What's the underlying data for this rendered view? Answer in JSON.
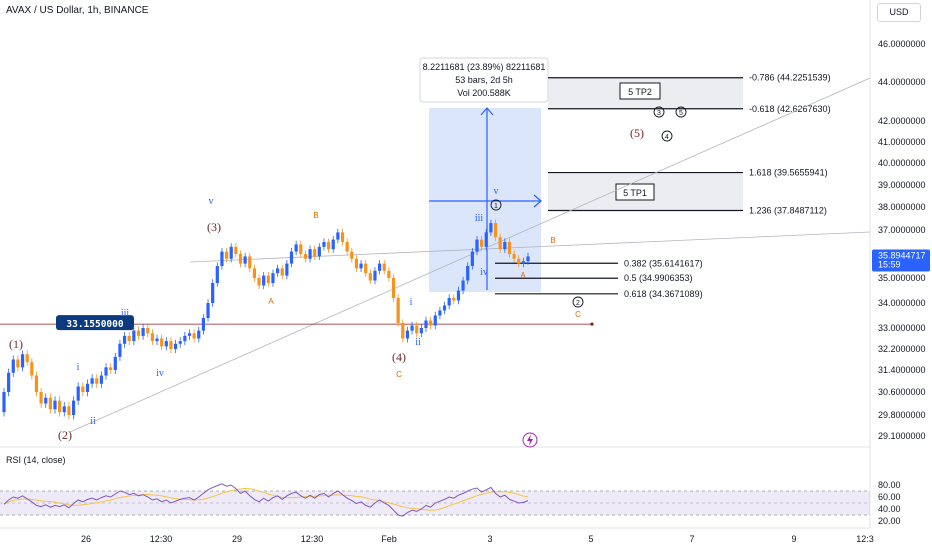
{
  "header": {
    "symbol": "AVAX / US Dollar, 1h, BINANCE",
    "currency": "USD"
  },
  "rsi": {
    "label": "RSI (14, close)"
  },
  "measure_box": {
    "line1": "8.2211681 (23.89%) 82211681",
    "line2": "53 bars, 2d 5h",
    "line3": "Vol 200.588K"
  },
  "targets": {
    "tp1": "5 TP1",
    "tp2": "5 TP2"
  },
  "horizontal_line_label": "33.1550000",
  "price_badge": {
    "price": "35.8944717",
    "time": "15:59"
  },
  "colors": {
    "up": "#2962ff",
    "down": "#f7931a",
    "fib_fill": "#e3e6eb",
    "measure_fill": "#5b8def",
    "rsi_band": "#9575cd",
    "rsi_line": "#7e57c2",
    "wave_major": "#6d2b2b",
    "wave_minor": "#2962ff",
    "wave_abc": "#e06b00"
  },
  "chart_data": {
    "type": "candlestick",
    "title": "AVAX / US Dollar, 1h, BINANCE",
    "y_ticks": [
      "46.0000000",
      "44.0000000",
      "42.0000000",
      "41.0000000",
      "40.0000000",
      "39.0000000",
      "38.0000000",
      "37.0000000",
      "36.0000000",
      "35.0000000",
      "34.0000000",
      "33.0000000",
      "32.2000000",
      "31.4000000",
      "30.6000000",
      "29.8000000",
      "29.1000000"
    ],
    "y_tick_values": [
      46.0,
      44.0,
      42.0,
      41.0,
      40.0,
      39.0,
      38.0,
      37.0,
      36.0,
      35.0,
      34.0,
      33.0,
      32.2,
      31.4,
      30.6,
      29.8,
      29.1
    ],
    "x_ticks": [
      "26",
      "12:30",
      "29",
      "12:30",
      "Feb",
      "3",
      "5",
      "7",
      "9",
      "12:3"
    ],
    "rsi_ticks": [
      "80.00",
      "60.00",
      "40.00",
      "20.00"
    ],
    "rsi_tick_values": [
      80,
      60,
      40,
      20
    ],
    "fib_levels": [
      {
        "label": "-0.786 (44.2251539)",
        "value": 44.2251539
      },
      {
        "label": "-0.618 (42.6267630)",
        "value": 42.626763
      },
      {
        "label": "1.618 (39.5655941)",
        "value": 39.5655941
      },
      {
        "label": "1.236 (37.8487112)",
        "value": 37.8487112
      },
      {
        "label": "0.382 (35.6141617)",
        "value": 35.6141617
      },
      {
        "label": "0.5 (34.9906353)",
        "value": 34.9906353
      },
      {
        "label": "0.618 (34.3671089)",
        "value": 34.3671089
      }
    ],
    "horizontal_line": 33.155,
    "last_price": 35.8944717,
    "wave_labels": {
      "major": [
        "(1)",
        "(2)",
        "(3)",
        "(4)",
        "(5)"
      ],
      "minor": [
        "i",
        "ii",
        "iii",
        "iv",
        "v"
      ],
      "abc": [
        "A",
        "B",
        "C"
      ],
      "circled": [
        "1",
        "2",
        "3",
        "4",
        "5"
      ]
    },
    "candles": [
      [
        29.9,
        30.6
      ],
      [
        30.6,
        31.3
      ],
      [
        31.3,
        31.8
      ],
      [
        31.8,
        31.5
      ],
      [
        31.5,
        32.0
      ],
      [
        32.0,
        31.7
      ],
      [
        31.7,
        31.2
      ],
      [
        31.2,
        30.6
      ],
      [
        30.6,
        30.2
      ],
      [
        30.2,
        30.4
      ],
      [
        30.4,
        30.0
      ],
      [
        30.0,
        30.3
      ],
      [
        30.3,
        29.9
      ],
      [
        29.9,
        30.1
      ],
      [
        30.1,
        29.8
      ],
      [
        29.8,
        30.3
      ],
      [
        30.3,
        30.8
      ],
      [
        30.8,
        30.6
      ],
      [
        30.6,
        30.9
      ],
      [
        30.9,
        31.1
      ],
      [
        31.1,
        30.9
      ],
      [
        30.9,
        31.2
      ],
      [
        31.2,
        31.5
      ],
      [
        31.5,
        31.4
      ],
      [
        31.4,
        31.9
      ],
      [
        31.9,
        32.4
      ],
      [
        32.4,
        32.7
      ],
      [
        32.7,
        32.5
      ],
      [
        32.5,
        32.9
      ],
      [
        32.9,
        32.7
      ],
      [
        32.7,
        33.0
      ],
      [
        33.0,
        32.8
      ],
      [
        32.8,
        32.5
      ],
      [
        32.5,
        32.6
      ],
      [
        32.6,
        32.3
      ],
      [
        32.3,
        32.5
      ],
      [
        32.5,
        32.2
      ],
      [
        32.2,
        32.4
      ],
      [
        32.4,
        32.5
      ],
      [
        32.5,
        32.7
      ],
      [
        32.7,
        32.8
      ],
      [
        32.8,
        32.6
      ],
      [
        32.6,
        32.9
      ],
      [
        32.9,
        33.4
      ],
      [
        33.4,
        34.0
      ],
      [
        34.0,
        34.8
      ],
      [
        34.8,
        35.5
      ],
      [
        35.5,
        36.1
      ],
      [
        36.1,
        35.8
      ],
      [
        35.8,
        36.3
      ],
      [
        36.3,
        36.0
      ],
      [
        36.0,
        35.6
      ],
      [
        35.6,
        35.9
      ],
      [
        35.9,
        35.4
      ],
      [
        35.4,
        35.0
      ],
      [
        35.0,
        34.7
      ],
      [
        34.7,
        35.1
      ],
      [
        35.1,
        34.8
      ],
      [
        34.8,
        35.2
      ],
      [
        35.2,
        35.4
      ],
      [
        35.4,
        35.1
      ],
      [
        35.1,
        35.6
      ],
      [
        35.6,
        36.1
      ],
      [
        36.1,
        36.4
      ],
      [
        36.4,
        36.0
      ],
      [
        36.0,
        35.8
      ],
      [
        35.8,
        36.2
      ],
      [
        36.2,
        35.9
      ],
      [
        35.9,
        36.3
      ],
      [
        36.3,
        36.5
      ],
      [
        36.5,
        36.2
      ],
      [
        36.2,
        36.6
      ],
      [
        36.6,
        36.9
      ],
      [
        36.9,
        36.5
      ],
      [
        36.5,
        36.1
      ],
      [
        36.1,
        35.8
      ],
      [
        35.8,
        35.4
      ],
      [
        35.4,
        35.6
      ],
      [
        35.6,
        35.2
      ],
      [
        35.2,
        34.9
      ],
      [
        34.9,
        35.3
      ],
      [
        35.3,
        35.6
      ],
      [
        35.6,
        35.3
      ],
      [
        35.3,
        35.0
      ],
      [
        35.0,
        34.2
      ],
      [
        34.2,
        33.2
      ],
      [
        33.2,
        32.6
      ],
      [
        32.6,
        32.9
      ],
      [
        32.9,
        33.1
      ],
      [
        33.1,
        32.8
      ],
      [
        32.8,
        33.0
      ],
      [
        33.0,
        33.3
      ],
      [
        33.3,
        33.1
      ],
      [
        33.1,
        33.5
      ],
      [
        33.5,
        33.7
      ],
      [
        33.7,
        33.9
      ],
      [
        33.9,
        34.2
      ],
      [
        34.2,
        34.1
      ],
      [
        34.1,
        34.5
      ],
      [
        34.5,
        34.9
      ],
      [
        34.9,
        35.5
      ],
      [
        35.5,
        36.1
      ],
      [
        36.1,
        36.6
      ],
      [
        36.6,
        36.3
      ],
      [
        36.3,
        36.9
      ],
      [
        36.9,
        37.3
      ],
      [
        37.3,
        36.7
      ],
      [
        36.7,
        36.2
      ],
      [
        36.2,
        36.5
      ],
      [
        36.5,
        36.0
      ],
      [
        36.0,
        35.8
      ],
      [
        35.8,
        35.6
      ],
      [
        35.6,
        35.7
      ],
      [
        35.7,
        35.9
      ]
    ],
    "rsi": [
      48,
      55,
      60,
      58,
      62,
      57,
      52,
      46,
      44,
      47,
      43,
      46,
      44,
      47,
      42,
      49,
      55,
      52,
      56,
      58,
      55,
      59,
      62,
      60,
      65,
      70,
      68,
      64,
      66,
      62,
      64,
      60,
      55,
      57,
      52,
      55,
      50,
      53,
      56,
      58,
      59,
      55,
      60,
      66,
      72,
      76,
      79,
      82,
      78,
      80,
      74,
      66,
      70,
      62,
      56,
      52,
      58,
      53,
      59,
      62,
      56,
      62,
      66,
      68,
      62,
      58,
      63,
      58,
      64,
      66,
      60,
      66,
      70,
      64,
      58,
      54,
      49,
      52,
      46,
      43,
      50,
      55,
      50,
      46,
      38,
      30,
      28,
      34,
      38,
      36,
      40,
      46,
      43,
      50,
      53,
      56,
      60,
      58,
      63,
      66,
      70,
      73,
      75,
      68,
      72,
      76,
      66,
      60,
      63,
      56,
      53,
      50,
      51,
      54
    ]
  }
}
